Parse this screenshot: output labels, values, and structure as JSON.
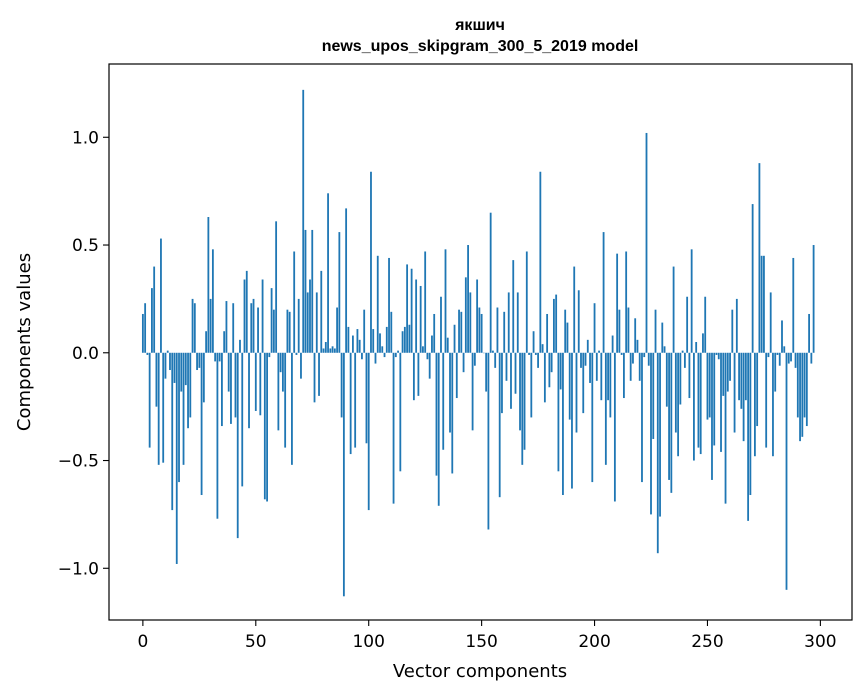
{
  "chart_data": {
    "type": "bar",
    "title": "якшич",
    "subtitle": "news_upos_skipgram_300_5_2019 model",
    "xlabel": "Vector components",
    "ylabel": "Components values",
    "xlim": [
      -15,
      314
    ],
    "ylim": [
      -1.24,
      1.34
    ],
    "x_ticks": [
      0,
      50,
      100,
      150,
      200,
      250,
      300
    ],
    "x_tick_labels": [
      "0",
      "50",
      "100",
      "150",
      "200",
      "250",
      "300"
    ],
    "y_ticks": [
      -1.0,
      -0.5,
      0.0,
      0.5,
      1.0
    ],
    "y_tick_labels": [
      "−1.0",
      "−0.5",
      "0.0",
      "0.5",
      "1.0"
    ],
    "bar_color": "#1f77b4",
    "grid": false,
    "values": [
      0.18,
      0.23,
      -0.01,
      -0.44,
      0.3,
      0.4,
      -0.25,
      -0.52,
      0.53,
      -0.51,
      -0.12,
      0.01,
      -0.08,
      -0.73,
      -0.14,
      -0.98,
      -0.6,
      -0.18,
      -0.52,
      -0.15,
      -0.35,
      -0.3,
      0.25,
      0.23,
      -0.08,
      -0.07,
      -0.66,
      -0.23,
      0.1,
      0.63,
      0.25,
      0.48,
      -0.04,
      -0.77,
      -0.04,
      -0.34,
      0.1,
      0.24,
      -0.18,
      -0.33,
      0.23,
      -0.3,
      -0.86,
      0.06,
      -0.62,
      0.34,
      0.38,
      -0.35,
      0.23,
      0.25,
      -0.27,
      0.21,
      -0.29,
      0.34,
      -0.68,
      -0.69,
      -0.02,
      0.3,
      0.2,
      0.61,
      -0.36,
      -0.09,
      -0.18,
      -0.44,
      0.2,
      0.19,
      -0.52,
      0.47,
      -0.01,
      0.25,
      -0.12,
      1.22,
      0.57,
      0.28,
      0.34,
      0.57,
      -0.23,
      0.28,
      -0.2,
      0.38,
      0.02,
      0.05,
      0.74,
      0.02,
      0.03,
      0.02,
      0.21,
      0.56,
      -0.3,
      -1.13,
      0.67,
      0.12,
      -0.47,
      0.08,
      -0.44,
      0.11,
      0.06,
      -0.03,
      0.2,
      -0.42,
      -0.73,
      0.84,
      0.11,
      -0.05,
      0.45,
      0.09,
      0.03,
      -0.02,
      0.12,
      0.44,
      0.19,
      -0.7,
      -0.02,
      0.01,
      -0.55,
      0.1,
      0.12,
      0.41,
      0.13,
      0.39,
      -0.22,
      0.34,
      -0.2,
      0.31,
      0.03,
      0.47,
      -0.03,
      -0.12,
      0.08,
      0.18,
      -0.57,
      -0.71,
      0.26,
      -0.45,
      0.48,
      0.07,
      -0.37,
      -0.56,
      0.13,
      -0.21,
      0.2,
      0.19,
      -0.09,
      0.35,
      0.5,
      0.28,
      -0.36,
      -0.06,
      0.34,
      0.21,
      0.18,
      0.0,
      -0.18,
      -0.82,
      0.65,
      0.01,
      -0.07,
      0.21,
      -0.67,
      -0.28,
      0.19,
      -0.13,
      0.28,
      -0.26,
      0.43,
      -0.19,
      0.28,
      -0.36,
      -0.52,
      -0.45,
      0.47,
      -0.01,
      -0.3,
      0.1,
      -0.01,
      -0.07,
      0.84,
      0.04,
      -0.23,
      0.18,
      -0.16,
      -0.09,
      0.25,
      0.27,
      -0.55,
      -0.17,
      -0.66,
      0.2,
      0.14,
      -0.31,
      -0.63,
      0.4,
      -0.37,
      0.29,
      -0.07,
      -0.28,
      -0.06,
      0.06,
      -0.14,
      -0.6,
      0.23,
      -0.13,
      0.01,
      -0.22,
      0.56,
      -0.52,
      -0.22,
      -0.3,
      0.08,
      -0.69,
      0.46,
      0.2,
      -0.01,
      -0.21,
      0.47,
      0.21,
      -0.13,
      -0.05,
      0.16,
      0.06,
      -0.13,
      -0.6,
      -0.02,
      1.02,
      -0.06,
      -0.75,
      -0.4,
      0.2,
      -0.93,
      -0.76,
      0.14,
      0.03,
      -0.25,
      -0.59,
      -0.65,
      0.4,
      -0.37,
      -0.48,
      -0.24,
      0.01,
      -0.07,
      0.26,
      -0.21,
      0.48,
      -0.5,
      0.05,
      -0.44,
      -0.47,
      0.09,
      0.26,
      -0.31,
      -0.3,
      -0.59,
      -0.43,
      -0.01,
      -0.03,
      -0.46,
      -0.2,
      -0.7,
      -0.18,
      -0.13,
      0.2,
      -0.37,
      0.25,
      -0.22,
      -0.26,
      -0.41,
      -0.22,
      -0.78,
      -0.66,
      0.69,
      -0.48,
      -0.34,
      0.88,
      0.45,
      0.45,
      -0.44,
      -0.02,
      0.28,
      -0.48,
      -0.18,
      -0.01,
      -0.06,
      0.15,
      0.03,
      -1.1,
      -0.05,
      -0.04,
      0.44,
      -0.07,
      -0.3,
      -0.41,
      -0.39,
      -0.3,
      -0.34,
      0.18,
      -0.05,
      0.5
    ]
  }
}
